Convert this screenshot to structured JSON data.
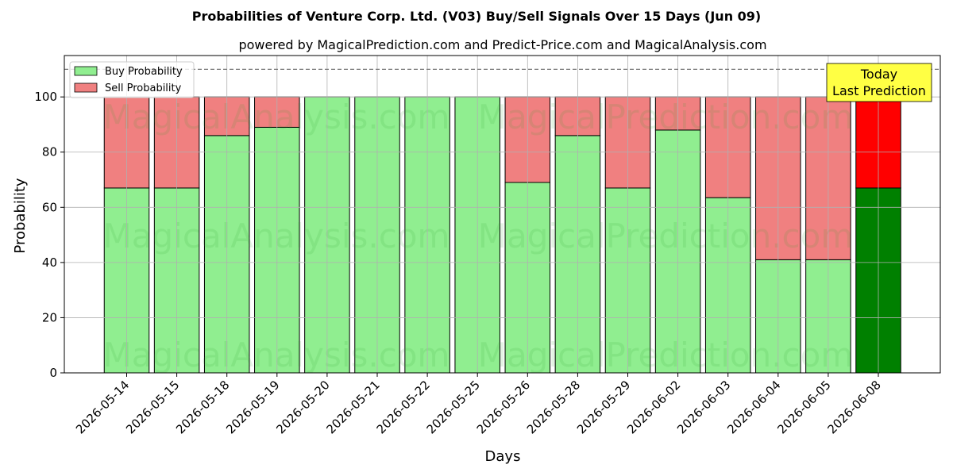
{
  "title": "Probabilities of Venture Corp. Ltd. (V03) Buy/Sell Signals Over 15 Days (Jun 09)",
  "subtitle": "powered by MagicalPrediction.com and Predict-Price.com and MagicalAnalysis.com",
  "today_annotation": {
    "line1": "Today",
    "line2": "Last Prediction"
  },
  "watermarks": [
    "MagicalAnalysis.com",
    "MagicalPrediction.com"
  ],
  "colors": {
    "buy": "#90ee90",
    "sell": "#f08080",
    "buy_today": "#008000",
    "sell_today": "#ff0000",
    "annotation_bg": "#ffff44"
  },
  "chart_data": {
    "type": "bar",
    "stacked": true,
    "xlabel": "Days",
    "ylabel": "Probability",
    "ylim": [
      0,
      115
    ],
    "yticks": [
      0,
      20,
      40,
      60,
      80,
      100
    ],
    "reference_line": 110,
    "grid": true,
    "legend_position": "top-left",
    "categories": [
      "2026-05-14",
      "2026-05-15",
      "2026-05-18",
      "2026-05-19",
      "2026-05-20",
      "2026-05-21",
      "2026-05-22",
      "2026-05-25",
      "2026-05-26",
      "2026-05-28",
      "2026-05-29",
      "2026-06-02",
      "2026-06-03",
      "2026-06-04",
      "2026-06-05",
      "2026-06-08"
    ],
    "series": [
      {
        "name": "Buy Probability",
        "values": [
          67,
          67,
          86,
          89,
          100,
          100,
          100,
          100,
          69,
          86,
          67,
          88,
          63.5,
          41,
          41,
          67
        ]
      },
      {
        "name": "Sell Probability",
        "values": [
          33,
          33,
          14,
          11,
          0,
          0,
          0,
          0,
          31,
          14,
          33,
          12,
          36.5,
          59,
          59,
          33
        ]
      }
    ]
  }
}
